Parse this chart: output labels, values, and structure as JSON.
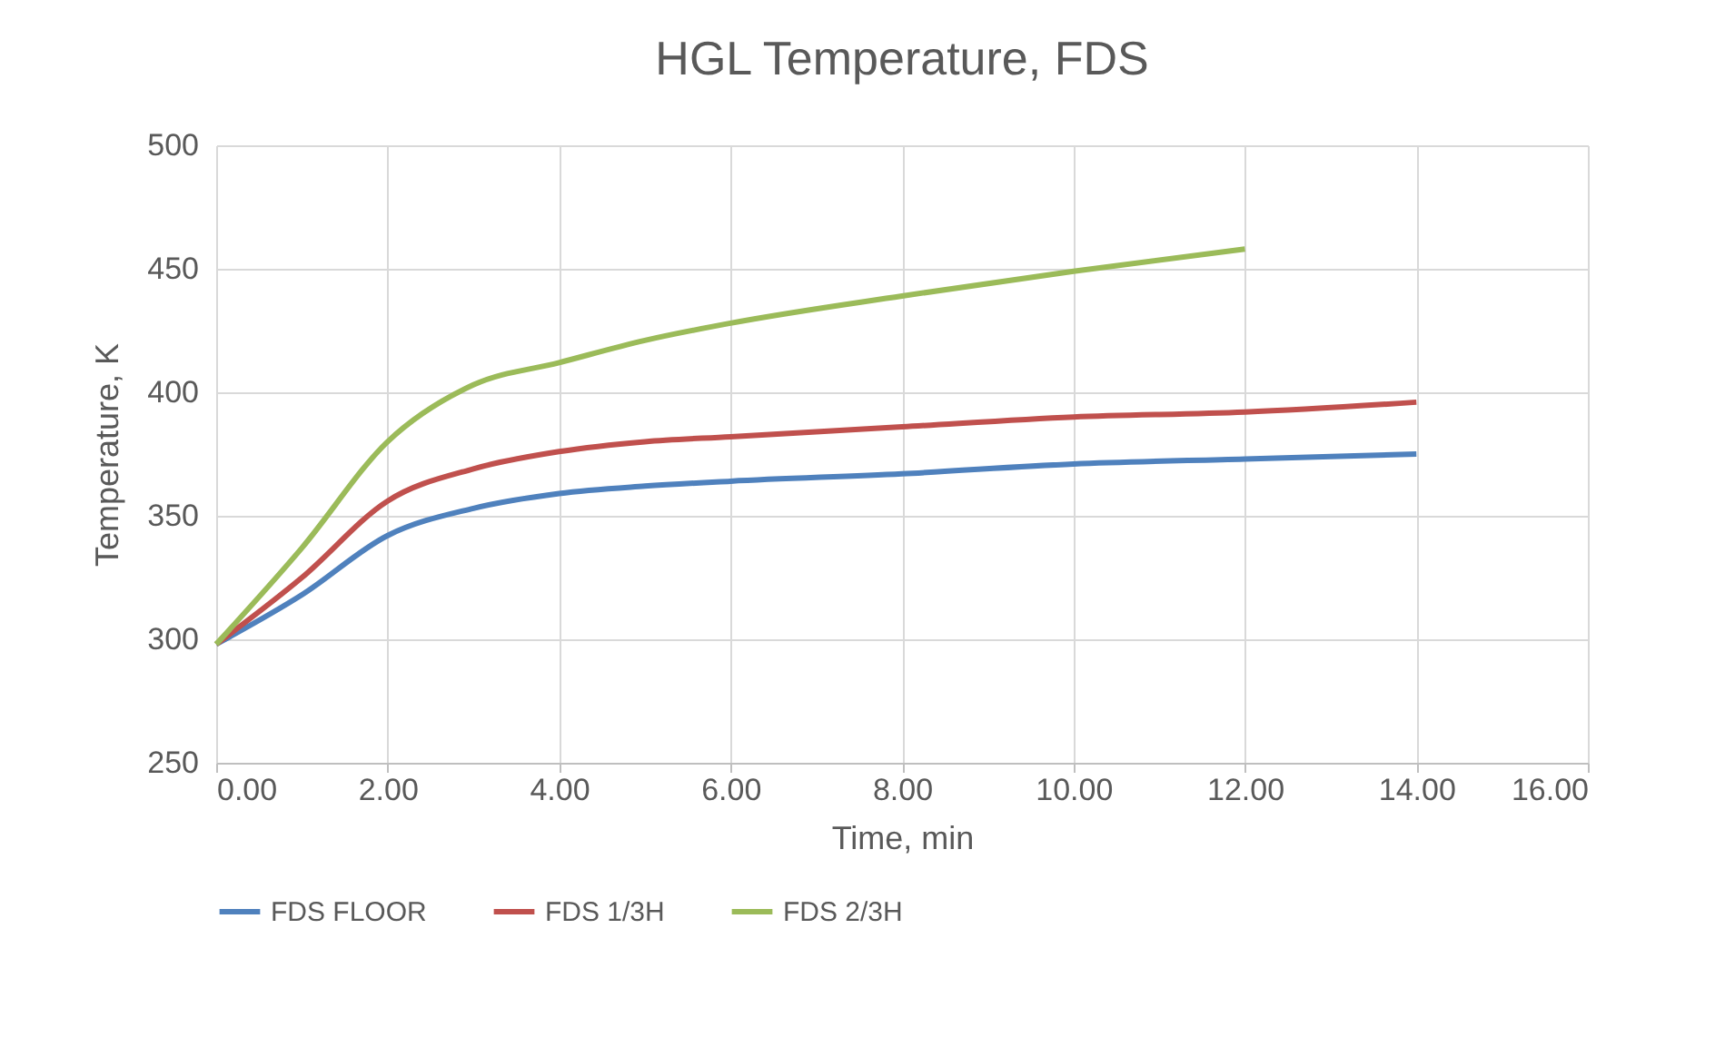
{
  "chart_data": {
    "type": "line",
    "title": "HGL Temperature,  FDS",
    "xlabel": "Time, min",
    "ylabel": "Temperature, K",
    "series": [
      {
        "name": "FDS FLOOR",
        "color": "#4f81bd",
        "x": [
          0,
          1,
          2,
          3,
          4,
          5,
          6,
          8,
          10,
          12,
          14
        ],
        "values": [
          298,
          318,
          342,
          353,
          359,
          362,
          364,
          367,
          371,
          373,
          375
        ]
      },
      {
        "name": "FDS 1/3H",
        "color": "#c0504d",
        "x": [
          0,
          1,
          2,
          3,
          4,
          5,
          6,
          8,
          10,
          12,
          14
        ],
        "values": [
          298,
          325,
          356,
          369,
          376,
          380,
          382,
          386,
          390,
          392,
          396
        ]
      },
      {
        "name": "FDS 2/3H",
        "color": "#9bbb59",
        "x": [
          0,
          1,
          2,
          3,
          4,
          5,
          6,
          8,
          10,
          12
        ],
        "values": [
          298,
          337,
          380,
          403,
          412,
          421,
          428,
          439,
          449,
          458
        ]
      }
    ],
    "xlim": [
      0,
      16
    ],
    "xticks": [
      {
        "value": 0,
        "label": "0.00"
      },
      {
        "value": 2,
        "label": "2.00"
      },
      {
        "value": 4,
        "label": "4.00"
      },
      {
        "value": 6,
        "label": "6.00"
      },
      {
        "value": 8,
        "label": "8.00"
      },
      {
        "value": 10,
        "label": "10.00"
      },
      {
        "value": 12,
        "label": "12.00"
      },
      {
        "value": 14,
        "label": "14.00"
      },
      {
        "value": 16,
        "label": "16.00"
      }
    ],
    "ylim": [
      250,
      500
    ],
    "yticks": [
      250,
      300,
      350,
      400,
      450,
      500
    ],
    "grid": true,
    "legend": "bottom",
    "marker": "none",
    "line_style": "solid"
  }
}
